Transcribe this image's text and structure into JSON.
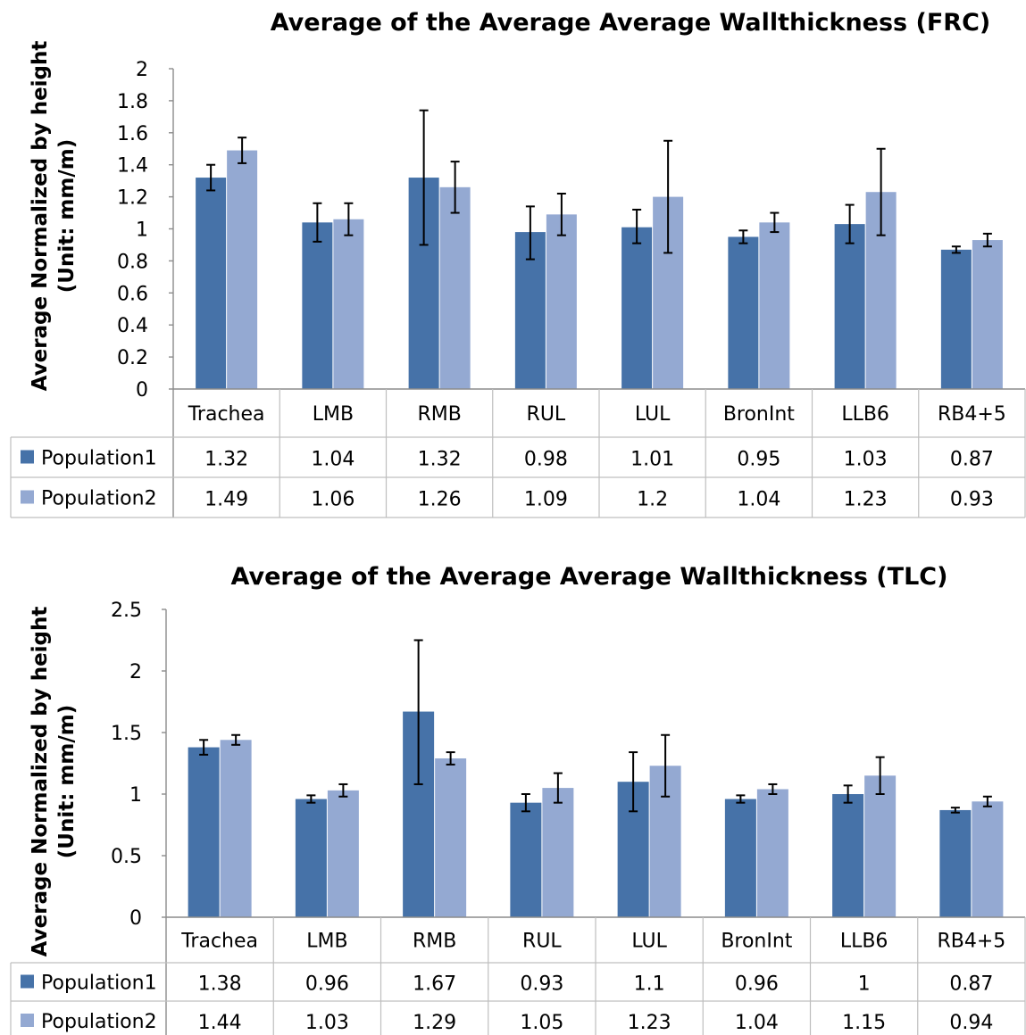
{
  "chart_data": [
    {
      "type": "bar",
      "title": "Average of the Average Average Wallthickness (FRC)",
      "ylabel_line1": "Average Normalized by height",
      "ylabel_line2": "(Unit: mm/m)",
      "ylim": [
        0,
        2
      ],
      "yticks": [
        "0",
        "0.2",
        "0.4",
        "0.6",
        "0.8",
        "1",
        "1.2",
        "1.4",
        "1.6",
        "1.8",
        "2"
      ],
      "categories": [
        "Trachea",
        "LMB",
        "RMB",
        "RUL",
        "LUL",
        "BronInt",
        "LLB6",
        "RB4+5"
      ],
      "series": [
        {
          "name": "Population1",
          "values": [
            1.32,
            1.04,
            1.32,
            0.98,
            1.01,
            0.95,
            1.03,
            0.87
          ],
          "value_labels": [
            "1.32",
            "1.04",
            "1.32",
            "0.98",
            "1.01",
            "0.95",
            "1.03",
            "0.87"
          ],
          "error_low": [
            1.24,
            0.92,
            0.9,
            0.81,
            0.91,
            0.91,
            0.91,
            0.85
          ],
          "error_high": [
            1.4,
            1.16,
            1.74,
            1.14,
            1.12,
            0.99,
            1.15,
            0.89
          ]
        },
        {
          "name": "Population2",
          "values": [
            1.49,
            1.06,
            1.26,
            1.09,
            1.2,
            1.04,
            1.23,
            0.93
          ],
          "value_labels": [
            "1.49",
            "1.06",
            "1.26",
            "1.09",
            "1.2",
            "1.04",
            "1.23",
            "0.93"
          ],
          "error_low": [
            1.41,
            0.96,
            1.1,
            0.96,
            0.85,
            0.98,
            0.96,
            0.89
          ],
          "error_high": [
            1.57,
            1.16,
            1.42,
            1.22,
            1.55,
            1.1,
            1.5,
            0.97
          ]
        }
      ],
      "grid": false,
      "legend": "data-table"
    },
    {
      "type": "bar",
      "title": "Average of the Average Average Wallthickness (TLC)",
      "ylabel_line1": "Average Normalized by height",
      "ylabel_line2": "(Unit: mm/m)",
      "ylim": [
        0,
        2.5
      ],
      "yticks": [
        "0",
        "0.5",
        "1",
        "1.5",
        "2",
        "2.5"
      ],
      "categories": [
        "Trachea",
        "LMB",
        "RMB",
        "RUL",
        "LUL",
        "BronInt",
        "LLB6",
        "RB4+5"
      ],
      "series": [
        {
          "name": "Population1",
          "values": [
            1.38,
            0.96,
            1.67,
            0.93,
            1.1,
            0.96,
            1,
            0.87
          ],
          "value_labels": [
            "1.38",
            "0.96",
            "1.67",
            "0.93",
            "1.1",
            "0.96",
            "1",
            "0.87"
          ],
          "error_low": [
            1.32,
            0.93,
            1.08,
            0.86,
            0.86,
            0.93,
            0.93,
            0.85
          ],
          "error_high": [
            1.44,
            0.99,
            2.25,
            1.0,
            1.34,
            0.99,
            1.07,
            0.89
          ]
        },
        {
          "name": "Population2",
          "values": [
            1.44,
            1.03,
            1.29,
            1.05,
            1.23,
            1.04,
            1.15,
            0.94
          ],
          "value_labels": [
            "1.44",
            "1.03",
            "1.29",
            "1.05",
            "1.23",
            "1.04",
            "1.15",
            "0.94"
          ],
          "error_low": [
            1.4,
            0.98,
            1.24,
            0.93,
            0.98,
            1.0,
            1.0,
            0.9
          ],
          "error_high": [
            1.48,
            1.08,
            1.34,
            1.17,
            1.48,
            1.08,
            1.3,
            0.98
          ]
        }
      ],
      "grid": false,
      "legend": "data-table"
    }
  ],
  "colors": {
    "Population1": "#4672a8",
    "Population2": "#94a9d2"
  }
}
